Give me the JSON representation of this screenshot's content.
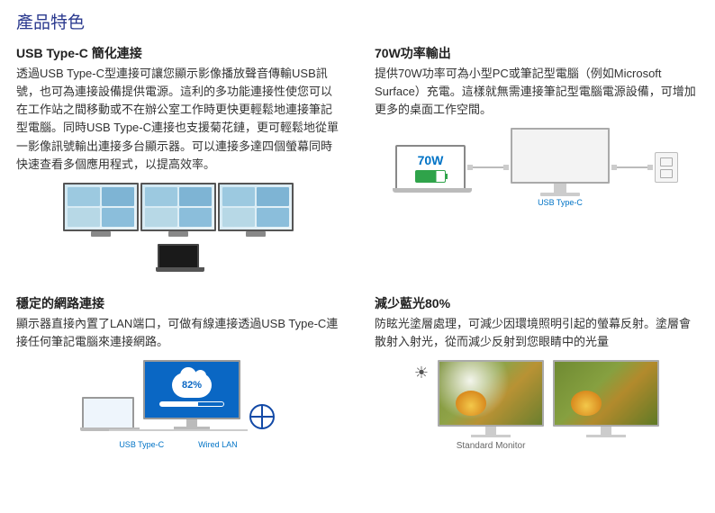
{
  "page_title": "產品特色",
  "features": {
    "usbc": {
      "title": "USB Type-C 簡化連接",
      "body": "透過USB Type-C型連接可讓您顯示影像播放聲音傳輸USB訊號，也可為連接設備提供電源。這利的多功能連接性使您可以在工作站之間移動或不在辦公室工作時更快更輕鬆地連接筆記型電腦。同時USB Type-C連接也支援菊花鏈，更可輕鬆地從單一影像訊號輸出連接多台顯示器。可以連接多達四個螢幕同時快速查看多個應用程式，以提高效率。"
    },
    "power": {
      "title": "70W功率輸出",
      "body": "提供70W功率可為小型PC或筆記型電腦（例如Microsoft Surface）充電。這樣就無需連接筆記型電腦電源設備，可增加更多的桌面工作空間。",
      "badge": "70W",
      "cable_label": "USB Type-C"
    },
    "lan": {
      "title": "穩定的網路連接",
      "body": "顯示器直接內置了LAN端口，可做有線連接透過USB Type-C連接任何筆記電腦來連接網路。",
      "cloud_pct": "82%",
      "label_left": "USB Type-C",
      "label_right": "Wired LAN"
    },
    "bluelight": {
      "title": "減少藍光80%",
      "body": "防眩光塗層處理，可減少因環境照明引起的螢幕反射。塗層會散射入射光，從而減少反射到您眼睛中的光量",
      "caption": "Standard Monitor"
    }
  },
  "colors": {
    "heading": "#2b3a8f",
    "accent_blue": "#0073c6",
    "screen_blue": "#0a67c4"
  }
}
